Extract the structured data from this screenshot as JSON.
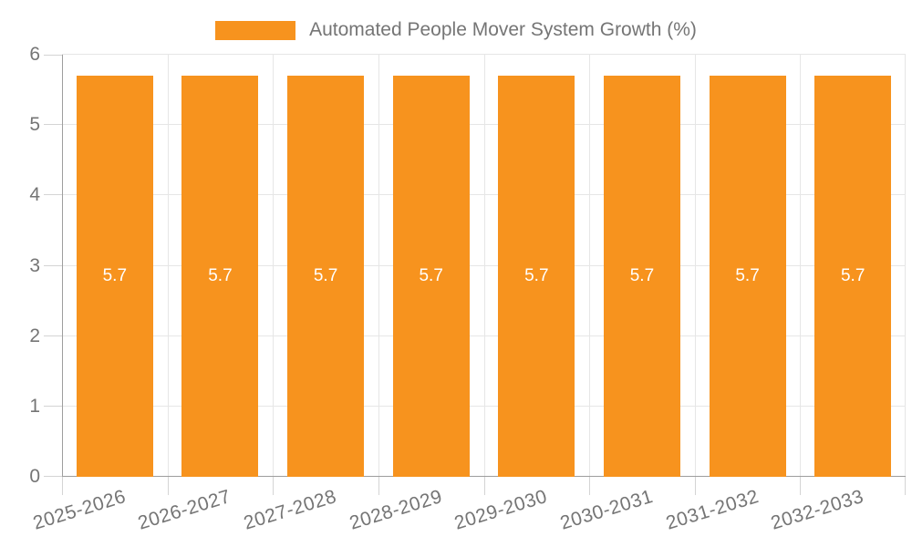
{
  "chart_data": {
    "type": "bar",
    "title": "Automated People Mover System Growth (%)",
    "legend_position": "top",
    "categories": [
      "2025-2026",
      "2026-2027",
      "2027-2028",
      "2028-2029",
      "2029-2030",
      "2030-2031",
      "2031-2032",
      "2032-2033"
    ],
    "values": [
      5.7,
      5.7,
      5.7,
      5.7,
      5.7,
      5.7,
      5.7,
      5.7
    ],
    "bar_labels": [
      "5.7",
      "5.7",
      "5.7",
      "5.7",
      "5.7",
      "5.7",
      "5.7",
      "5.7"
    ],
    "xlabel": "",
    "ylabel": "",
    "ylim": [
      0,
      6
    ],
    "yticks": [
      "0",
      "1",
      "2",
      "3",
      "4",
      "5",
      "6"
    ],
    "grid": true,
    "colors": {
      "bar": "#f7931e",
      "bar_label": "#ffffff",
      "axis_text": "#757575",
      "grid_line": "#e6e6e6",
      "tick_line": "#d4d4d4",
      "axis_line": "#9e9e9e",
      "background": "#ffffff"
    }
  }
}
